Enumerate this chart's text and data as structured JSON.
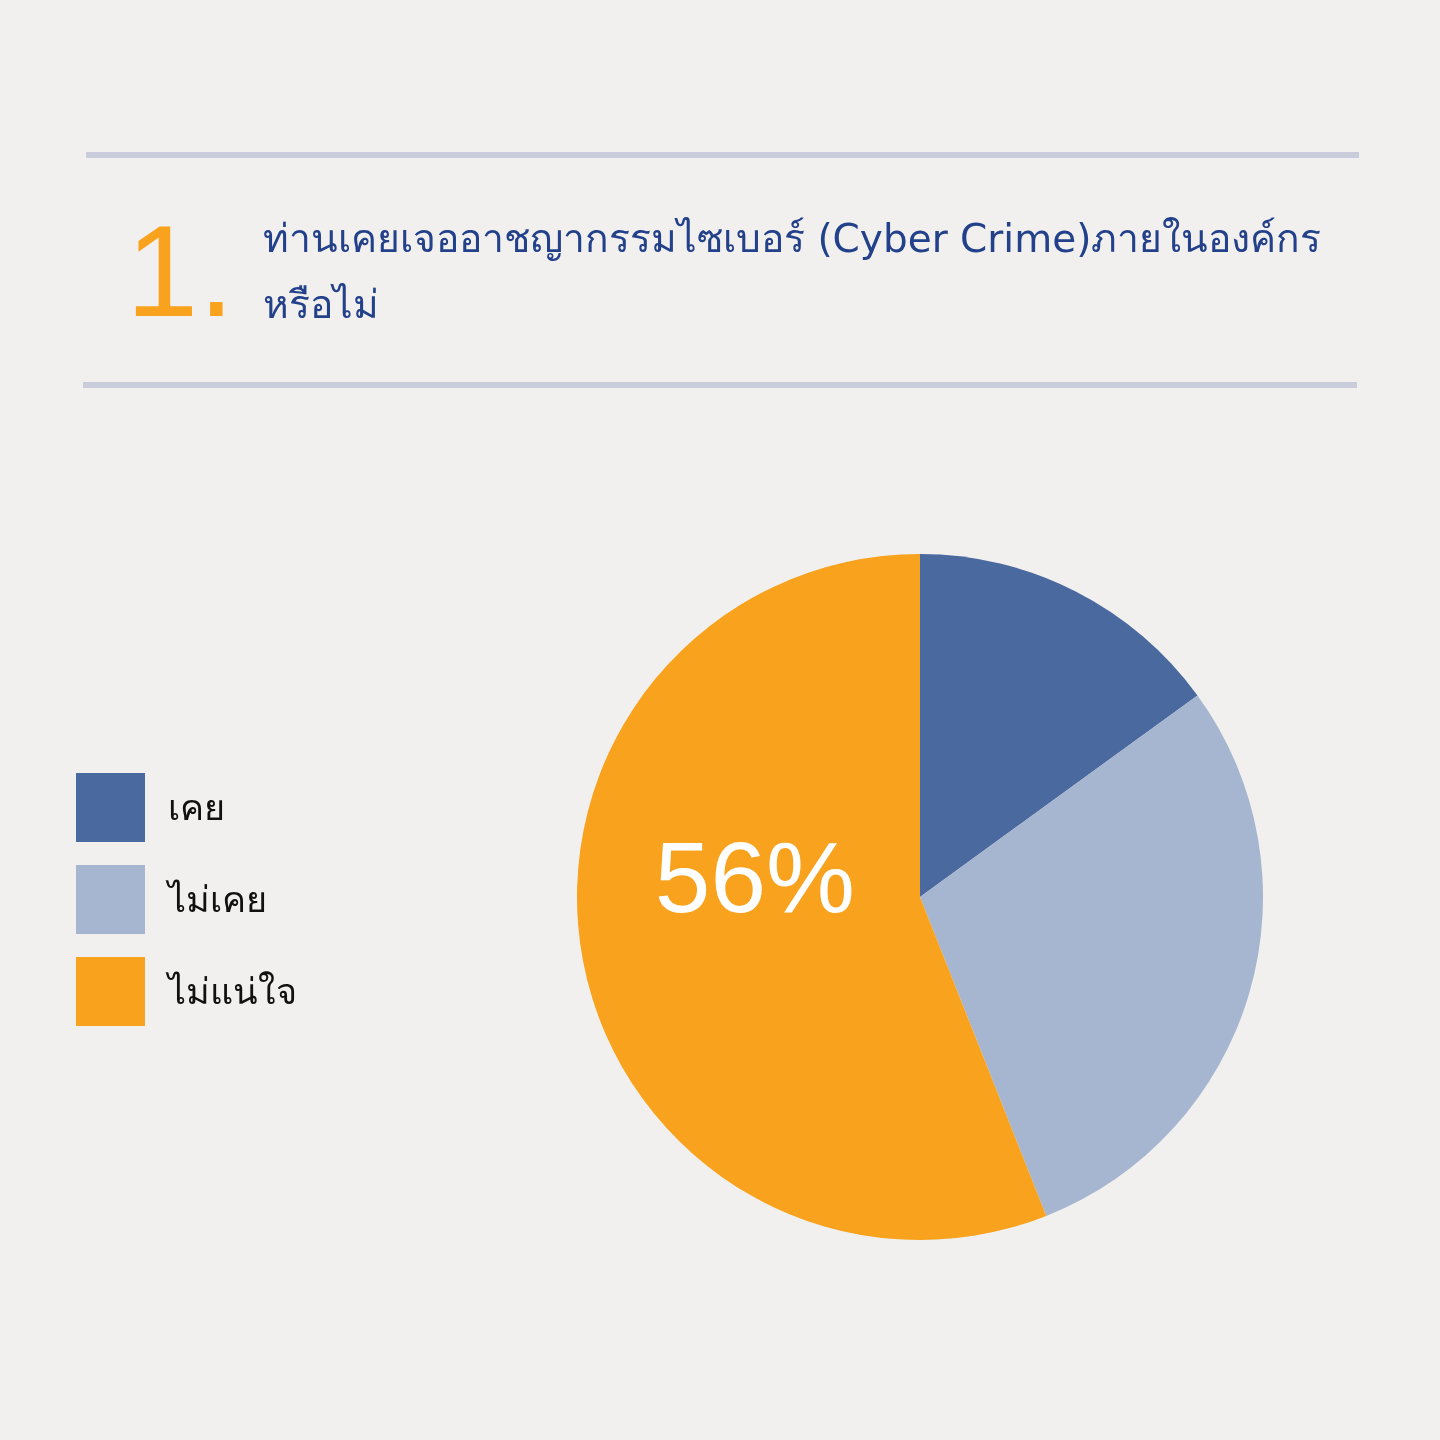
{
  "chart_data": {
    "type": "pie",
    "title": "ท่านเคยเจออาชญากรรมไซเบอร์ (Cyber Crime)ภายในองค์กรหรือไม่",
    "annotations": [
      "1."
    ],
    "categories": [
      "เคย",
      "ไม่เคย",
      "ไม่แน่ใจ"
    ],
    "values": [
      15,
      29,
      56
    ],
    "colors": [
      "#4a699f",
      "#a6b5d0",
      "#f8a21d"
    ],
    "value_labels": [
      null,
      null,
      "56%"
    ],
    "legend": "left"
  }
}
